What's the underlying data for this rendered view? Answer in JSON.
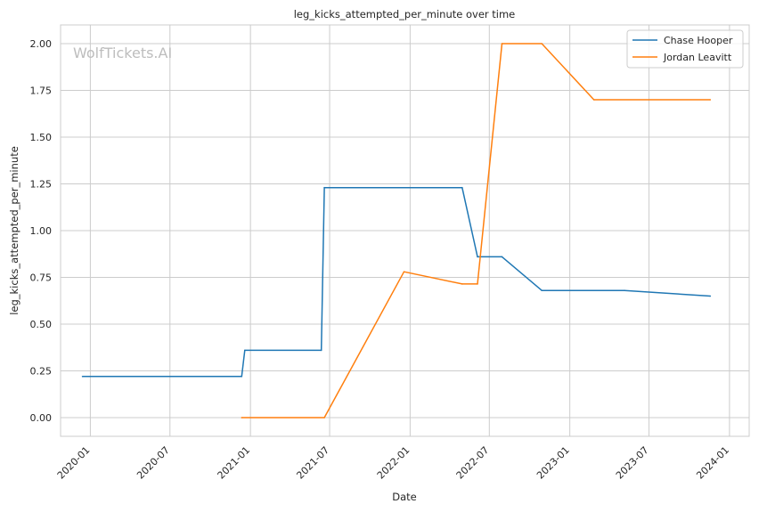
{
  "chart_data": {
    "type": "line",
    "title": "leg_kicks_attempted_per_minute over time",
    "xlabel": "Date",
    "ylabel": "leg_kicks_attempted_per_minute",
    "watermark": "WolfTickets.AI",
    "x_axis_type": "date",
    "xlim": [
      "2019-10-25",
      "2024-02-15"
    ],
    "ylim": [
      -0.1,
      2.1
    ],
    "x_ticks": [
      "2020-01",
      "2020-07",
      "2021-01",
      "2021-07",
      "2022-01",
      "2022-07",
      "2023-01",
      "2023-07",
      "2024-01"
    ],
    "y_ticks": [
      "0.00",
      "0.25",
      "0.50",
      "0.75",
      "1.00",
      "1.25",
      "1.50",
      "1.75",
      "2.00"
    ],
    "grid": true,
    "legend_position": "top-right",
    "series": [
      {
        "name": "Chase Hooper",
        "color": "#1f77b4",
        "points": [
          {
            "x": "2019-12-14",
            "y": 0.22
          },
          {
            "x": "2020-12-12",
            "y": 0.22
          },
          {
            "x": "2020-12-19",
            "y": 0.36
          },
          {
            "x": "2021-06-12",
            "y": 0.36
          },
          {
            "x": "2021-06-19",
            "y": 1.23
          },
          {
            "x": "2022-04-30",
            "y": 1.23
          },
          {
            "x": "2022-06-04",
            "y": 0.86
          },
          {
            "x": "2022-07-30",
            "y": 0.86
          },
          {
            "x": "2022-10-29",
            "y": 0.68
          },
          {
            "x": "2023-05-06",
            "y": 0.68
          },
          {
            "x": "2023-11-18",
            "y": 0.65
          }
        ]
      },
      {
        "name": "Jordan Leavitt",
        "color": "#ff7f0e",
        "points": [
          {
            "x": "2020-12-12",
            "y": 0.0
          },
          {
            "x": "2021-06-19",
            "y": 0.0
          },
          {
            "x": "2021-12-18",
            "y": 0.78
          },
          {
            "x": "2022-04-30",
            "y": 0.715
          },
          {
            "x": "2022-06-04",
            "y": 0.715
          },
          {
            "x": "2022-07-30",
            "y": 2.0
          },
          {
            "x": "2022-10-29",
            "y": 2.0
          },
          {
            "x": "2023-02-25",
            "y": 1.7
          },
          {
            "x": "2023-11-18",
            "y": 1.7
          }
        ]
      }
    ]
  }
}
